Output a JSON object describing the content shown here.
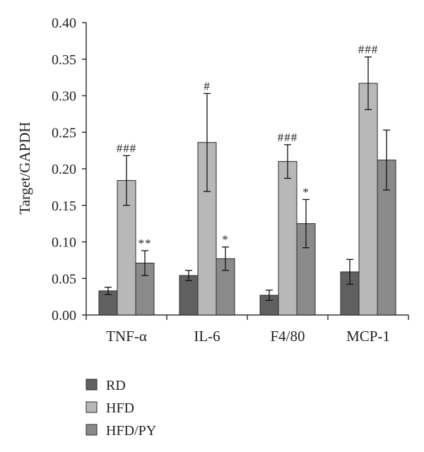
{
  "chart_data": {
    "type": "bar",
    "title": "",
    "xlabel": "",
    "ylabel": "Target/GAPDH",
    "ylim": [
      0,
      0.4
    ],
    "yticks": [
      "0.00",
      "0.05",
      "0.10",
      "0.15",
      "0.20",
      "0.25",
      "0.30",
      "0.35",
      "0.40"
    ],
    "categories": [
      "TNF-α",
      "IL-6",
      "F4/80",
      "MCP-1"
    ],
    "grid": false,
    "legend_position": "bottom-left",
    "series": [
      {
        "name": "RD",
        "color": "#606060",
        "values": [
          0.033,
          0.054,
          0.027,
          0.059
        ],
        "errors": [
          0.005,
          0.007,
          0.007,
          0.017
        ],
        "significance": [
          "",
          "",
          "",
          ""
        ]
      },
      {
        "name": "HFD",
        "color": "#b8b8b8",
        "values": [
          0.184,
          0.236,
          0.21,
          0.317
        ],
        "errors": [
          0.034,
          0.067,
          0.023,
          0.036
        ],
        "significance": [
          "###",
          "#",
          "###",
          "###"
        ]
      },
      {
        "name": "HFD/PY",
        "color": "#8a8a8a",
        "values": [
          0.071,
          0.077,
          0.125,
          0.212
        ],
        "errors": [
          0.017,
          0.016,
          0.033,
          0.041
        ],
        "significance": [
          "**",
          "*",
          "*",
          ""
        ]
      }
    ]
  }
}
